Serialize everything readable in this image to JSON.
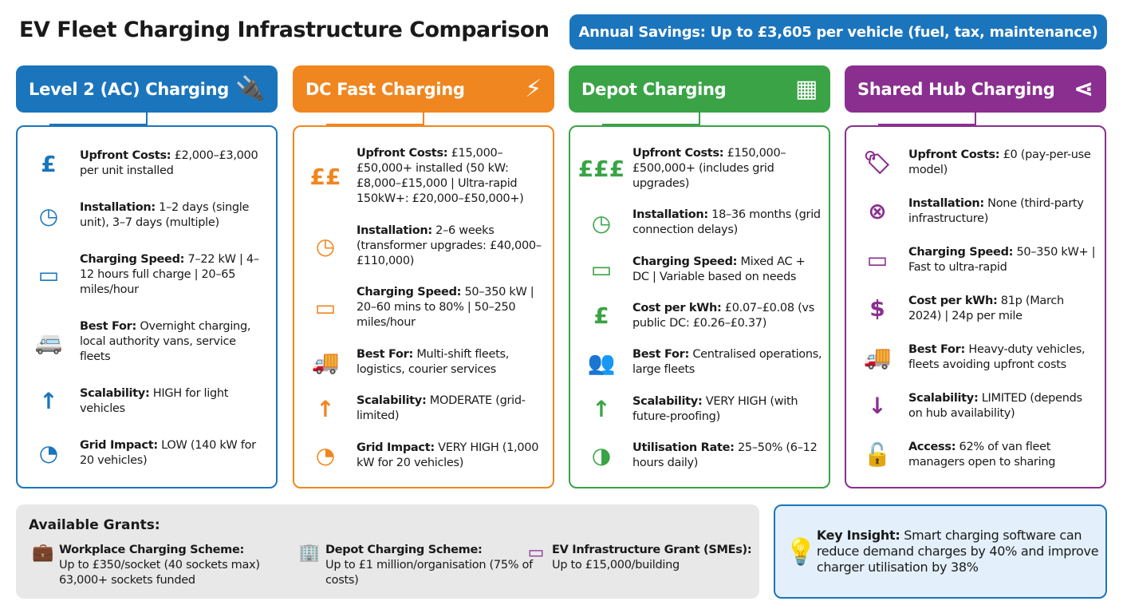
{
  "title": "EV Fleet Charging Infrastructure Comparison",
  "banner": "Annual Savings: Up to £3,605 per vehicle (fuel, tax, maintenance)",
  "colors": {
    "level2": "#1b75bc",
    "dc": "#f0861f",
    "depot": "#3aa346",
    "hub": "#8a2f8f"
  },
  "columns": [
    {
      "title": "Level 2 (AC) Charging",
      "icon": "plug-icon",
      "items": [
        {
          "icon": "pound-icon",
          "glyph": "£",
          "label": "Upfront Costs:",
          "text": " £2,000–£3,000 per unit installed"
        },
        {
          "icon": "clock-icon",
          "glyph": "◷",
          "label": "Installation:",
          "text": " 1–2 days (single unit), 3–7 days (multiple)"
        },
        {
          "icon": "battery-icon",
          "glyph": "▭",
          "label": "Charging Speed:",
          "text": " 7–22 kW | 4–12 hours full charge | 20–65 miles/hour"
        },
        {
          "icon": "van-icon",
          "glyph": "🚐",
          "label": "Best For:",
          "text": " Overnight charging, local authority vans, service fleets"
        },
        {
          "icon": "arrow-up-icon",
          "glyph": "↑",
          "label": "Scalability:",
          "text": " HIGH for light vehicles"
        },
        {
          "icon": "gauge-icon",
          "glyph": "◔",
          "label": "Grid Impact:",
          "text": " LOW (140 kW for 20 vehicles)"
        }
      ]
    },
    {
      "title": "DC Fast Charging",
      "icon": "lightning-icon",
      "items": [
        {
          "icon": "pound-icon",
          "glyph": "££",
          "label": "Upfront Costs:",
          "text": " £15,000–£50,000+ installed (50 kW: £8,000–£15,000 | Ultra-rapid 150kW+: £20,000–£50,000+)"
        },
        {
          "icon": "clock-icon",
          "glyph": "◷",
          "label": "Installation:",
          "text": " 2–6 weeks (transformer upgrades: £40,000–£110,000)"
        },
        {
          "icon": "battery-icon",
          "glyph": "▭",
          "label": "Charging Speed:",
          "text": " 50–350 kW | 20–60 mins to 80% | 50–250 miles/hour"
        },
        {
          "icon": "truck-icon",
          "glyph": "🚚",
          "label": "Best For:",
          "text": " Multi-shift fleets, logistics, courier services"
        },
        {
          "icon": "arrow-up-icon",
          "glyph": "↑",
          "label": "Scalability:",
          "text": " MODERATE (grid-limited)"
        },
        {
          "icon": "gauge-icon",
          "glyph": "◔",
          "label": "Grid Impact:",
          "text": " VERY HIGH (1,000 kW for 20 vehicles)"
        }
      ]
    },
    {
      "title": "Depot Charging",
      "icon": "warehouse-icon",
      "items": [
        {
          "icon": "pound-icon",
          "glyph": "£££",
          "label": "Upfront Costs:",
          "text": " £150,000–£500,000+ (includes grid upgrades)"
        },
        {
          "icon": "clock-icon",
          "glyph": "◷",
          "label": "Installation:",
          "text": " 18–36 months (grid connection delays)"
        },
        {
          "icon": "battery-icon",
          "glyph": "▭",
          "label": "Charging Speed:",
          "text": " Mixed AC + DC | Variable based on needs"
        },
        {
          "icon": "pound-coin-icon",
          "glyph": "£",
          "label": "Cost per kWh:",
          "text": " £0.07–£0.08 (vs public DC: £0.26–£0.37)"
        },
        {
          "icon": "people-icon",
          "glyph": "👥",
          "label": "Best For:",
          "text": " Centralised operations, large fleets"
        },
        {
          "icon": "arrow-up-icon",
          "glyph": "↑",
          "label": "Scalability:",
          "text": " VERY HIGH (with future-proofing)"
        },
        {
          "icon": "pie-icon",
          "glyph": "◑",
          "label": "Utilisation Rate:",
          "text": " 25–50% (6–12 hours daily)"
        }
      ]
    },
    {
      "title": "Shared Hub Charging",
      "icon": "share-icon",
      "items": [
        {
          "icon": "free-tag-icon",
          "glyph": "🏷",
          "label": "Upfront Costs:",
          "text": " £0 (pay-per-use model)"
        },
        {
          "icon": "x-circle-icon",
          "glyph": "⊗",
          "label": "Installation:",
          "text": " None (third-party infrastructure)"
        },
        {
          "icon": "battery-icon",
          "glyph": "▭",
          "label": "Charging Speed:",
          "text": " 50–350 kW+ | Fast to ultra-rapid"
        },
        {
          "icon": "dollar-icon",
          "glyph": "$",
          "label": "Cost per kWh:",
          "text": " 81p (March 2024) | 24p per mile"
        },
        {
          "icon": "truck-icon",
          "glyph": "🚚",
          "label": "Best For:",
          "text": " Heavy-duty vehicles, fleets avoiding upfront costs"
        },
        {
          "icon": "arrow-down-icon",
          "glyph": "↓",
          "label": "Scalability:",
          "text": " LIMITED (depends on hub availability)"
        },
        {
          "icon": "unlock-icon",
          "glyph": "🔓",
          "label": "Access:",
          "text": " 62% of van fleet managers open to sharing"
        }
      ]
    }
  ],
  "grants": {
    "title": "Available Grants:",
    "items": [
      {
        "icon": "briefcase-icon",
        "glyph": "💼",
        "label": "Workplace Charging Scheme:",
        "text": "Up to £350/socket (40 sockets max) 63,000+ sockets funded"
      },
      {
        "icon": "building-icon",
        "glyph": "🏢",
        "label": "Depot Charging Scheme:",
        "text": "Up to £1 million/organisation (75% of costs)"
      },
      {
        "icon": "card-icon",
        "glyph": "▭",
        "label": "EV Infrastructure Grant (SMEs):",
        "text": "Up to £15,000/building"
      }
    ]
  },
  "insight": {
    "label": "Key Insight:",
    "text": " Smart charging software can reduce demand charges by 40% and improve charger utilisation by 38%"
  }
}
